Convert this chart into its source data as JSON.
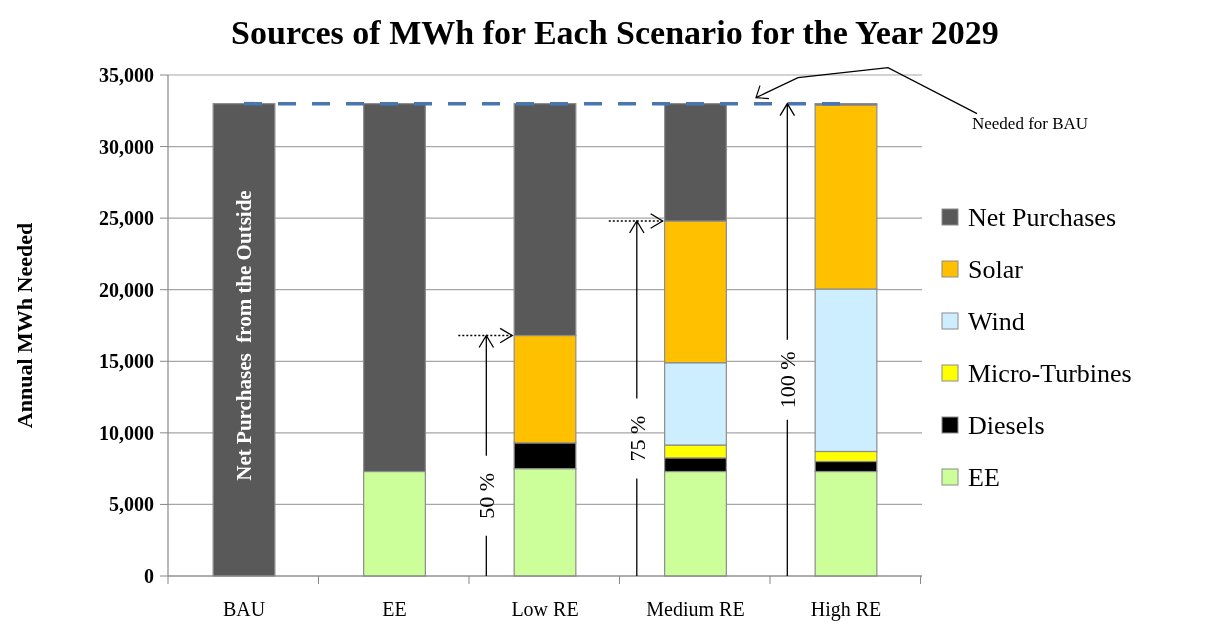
{
  "chart_data": {
    "type": "bar",
    "stacked": true,
    "title": "Sources of MWh for Each Scenario for the Year 2029",
    "ylabel": "Annual MWh Needed",
    "categories": [
      "BAU",
      "EE",
      "Low RE",
      "Medium RE",
      "High RE"
    ],
    "series": [
      {
        "name": "EE",
        "color": "#ccff99",
        "values": [
          0,
          7300,
          7500,
          7300,
          7300
        ]
      },
      {
        "name": "Diesels",
        "color": "#000000",
        "values": [
          0,
          0,
          1800,
          950,
          700
        ]
      },
      {
        "name": "Micro-Turbines",
        "color": "#ffff00",
        "values": [
          0,
          0,
          0,
          900,
          700
        ]
      },
      {
        "name": "Wind",
        "color": "#cceeff",
        "values": [
          0,
          0,
          0,
          5750,
          11350
        ]
      },
      {
        "name": "Solar",
        "color": "#ffc000",
        "values": [
          0,
          0,
          7500,
          9900,
          12850
        ]
      },
      {
        "name": "Net Purchases",
        "color": "#595959",
        "values": [
          33000,
          25700,
          16200,
          8200,
          100
        ]
      }
    ],
    "ylim": [
      0,
      35000
    ],
    "yticks": [
      0,
      {
        "value": 5000,
        "label": "5,000"
      },
      {
        "value": 10000,
        "label": "10,000"
      },
      {
        "value": 15000,
        "label": "15,000"
      },
      {
        "value": 20000,
        "label": "20,000"
      },
      {
        "value": 25000,
        "label": "25,000"
      },
      {
        "value": 30000,
        "label": "30,000"
      },
      {
        "value": 35000,
        "label": "35,000"
      }
    ],
    "grid": "y",
    "legend": "right",
    "ref_lines": [
      {
        "axis": "y",
        "value": 33000,
        "label": "Needed for BAU",
        "color": "#4a76b0",
        "line_style": "dashed"
      }
    ],
    "annotations": [
      "Net Purchases  from the Outside",
      "50 %",
      "75 %",
      {
        "text": "100 %",
        "y": 33000
      }
    ]
  }
}
